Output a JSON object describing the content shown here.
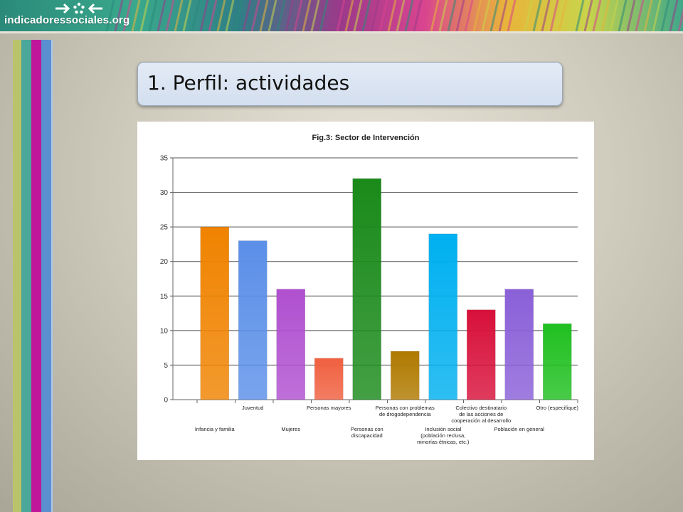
{
  "header": {
    "site_name": "indicadoressociales.org",
    "logo_icon": "arrows-and-star-logo",
    "colors": [
      "#2a8a7a",
      "#9b3a8a",
      "#d9448f",
      "#e8b53a",
      "#c9d44a"
    ]
  },
  "slide": {
    "title": "1. Perfil: actividades"
  },
  "side_stripes": [
    "#b9c46a",
    "#4aa79a",
    "#c0179a",
    "#5a8fd0"
  ],
  "chart_data": {
    "type": "bar",
    "title": "Fig.3: Sector de Intervención",
    "xlabel": "",
    "ylabel": "",
    "ylim": [
      0,
      35
    ],
    "yticks": [
      0,
      5,
      10,
      15,
      20,
      25,
      30,
      35
    ],
    "grid": true,
    "legend": "none",
    "categories": [
      "Infancia y familia",
      "Juventud",
      "Mujeres",
      "Personas mayores",
      "Personas con discapacidad",
      "Personas con problemas de drogodependencia",
      "Inclusión social (población reclusa, minorías étnicas, etc.)",
      "Colectivo destinatario de las acciones de cooperación al desarrollo",
      "Población en general",
      "Otro (especifique)"
    ],
    "label_lines": [
      [
        "Infancia y familia"
      ],
      [
        "Juventud"
      ],
      [
        "Mujeres"
      ],
      [
        "Personas mayores"
      ],
      [
        "Personas con",
        "discapacidad"
      ],
      [
        "Personas con problemas",
        "de drogodependencia"
      ],
      [
        "Inclusión social",
        "(población reclusa,",
        "minorías étnicas, etc.)"
      ],
      [
        "Colectivo destinatario",
        "de las acciones de",
        "cooperación al desarrollo"
      ],
      [
        "Población en  general"
      ],
      [
        "Otro (especifique)"
      ]
    ],
    "values": [
      25,
      23,
      16,
      6,
      32,
      7,
      24,
      13,
      16,
      11
    ],
    "colors": [
      "#f08300",
      "#5b8fe8",
      "#b050d0",
      "#f06040",
      "#1a8a1a",
      "#b07a00",
      "#00b0f0",
      "#d8103a",
      "#8a60d8",
      "#20c020"
    ]
  }
}
